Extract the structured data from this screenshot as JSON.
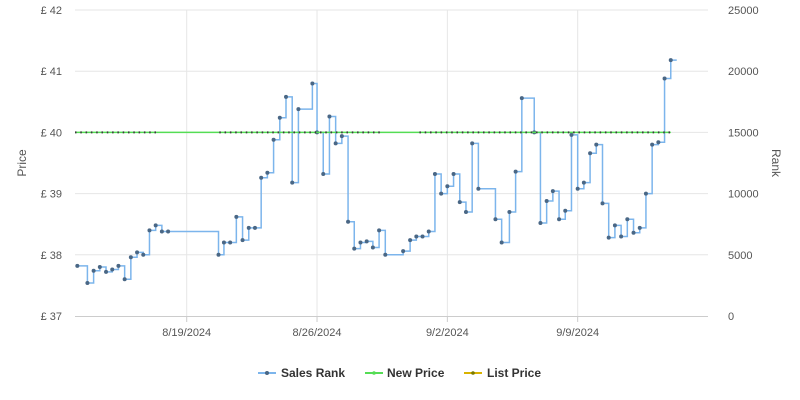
{
  "chart_data": {
    "type": "line",
    "title": "",
    "ylabel": "Price",
    "y2label": "Rank",
    "ylim": [
      37,
      42
    ],
    "y2lim": [
      0,
      25000
    ],
    "yticks": [
      {
        "value": 37,
        "label": "£ 37"
      },
      {
        "value": 38,
        "label": "£ 38"
      },
      {
        "value": 39,
        "label": "£ 39"
      },
      {
        "value": 40,
        "label": "£ 40"
      },
      {
        "value": 41,
        "label": "£ 41"
      },
      {
        "value": 42,
        "label": "£ 42"
      }
    ],
    "y2ticks": [
      {
        "value": 0,
        "label": "0"
      },
      {
        "value": 5000,
        "label": "5000"
      },
      {
        "value": 10000,
        "label": "10000"
      },
      {
        "value": 15000,
        "label": "15000"
      },
      {
        "value": 20000,
        "label": "20000"
      },
      {
        "value": 25000,
        "label": "25000"
      }
    ],
    "xlim": [
      "2024-08-13",
      "2024-09-16"
    ],
    "xticks": [
      {
        "date": "2024-08-19",
        "label": "8/19/2024"
      },
      {
        "date": "2024-08-26",
        "label": "8/26/2024"
      },
      {
        "date": "2024-09-02",
        "label": "9/2/2024"
      },
      {
        "date": "2024-09-09",
        "label": "9/9/2024"
      }
    ],
    "grid": true,
    "legend_position": "bottom-center",
    "series": [
      {
        "name": "Sales Rank",
        "axis": "right",
        "style": "step",
        "color": "#7cb5ec",
        "marker_color": "#4a6785",
        "points": [
          [
            "2024-08-13T03:00",
            4100
          ],
          [
            "2024-08-13T16:00",
            2700
          ],
          [
            "2024-08-14T00:00",
            3700
          ],
          [
            "2024-08-14T08:00",
            4000
          ],
          [
            "2024-08-14T16:00",
            3600
          ],
          [
            "2024-08-15T00:00",
            3800
          ],
          [
            "2024-08-15T08:00",
            4100
          ],
          [
            "2024-08-15T16:00",
            3000
          ],
          [
            "2024-08-16T00:00",
            4800
          ],
          [
            "2024-08-16T08:00",
            5200
          ],
          [
            "2024-08-16T16:00",
            5000
          ],
          [
            "2024-08-17T00:00",
            7000
          ],
          [
            "2024-08-17T08:00",
            7400
          ],
          [
            "2024-08-17T16:00",
            6900
          ],
          [
            "2024-08-18T00:00",
            6900
          ],
          [
            "2024-08-20T17:00",
            5000
          ],
          [
            "2024-08-21T00:00",
            6000
          ],
          [
            "2024-08-21T08:00",
            6000
          ],
          [
            "2024-08-21T16:00",
            8100
          ],
          [
            "2024-08-22T00:00",
            6200
          ],
          [
            "2024-08-22T08:00",
            7200
          ],
          [
            "2024-08-22T16:00",
            7200
          ],
          [
            "2024-08-23T00:00",
            11300
          ],
          [
            "2024-08-23T08:00",
            11700
          ],
          [
            "2024-08-23T16:00",
            14400
          ],
          [
            "2024-08-24T00:00",
            16200
          ],
          [
            "2024-08-24T08:00",
            17900
          ],
          [
            "2024-08-24T16:00",
            10900
          ],
          [
            "2024-08-25T00:00",
            16900
          ],
          [
            "2024-08-25T18:00",
            19000
          ],
          [
            "2024-08-26T00:00",
            15000
          ],
          [
            "2024-08-26T08:00",
            11600
          ],
          [
            "2024-08-26T16:00",
            16300
          ],
          [
            "2024-08-27T00:00",
            14100
          ],
          [
            "2024-08-27T08:00",
            14700
          ],
          [
            "2024-08-27T16:00",
            7700
          ],
          [
            "2024-08-28T00:00",
            5500
          ],
          [
            "2024-08-28T08:00",
            6000
          ],
          [
            "2024-08-28T16:00",
            6100
          ],
          [
            "2024-08-29T00:00",
            5600
          ],
          [
            "2024-08-29T08:00",
            7000
          ],
          [
            "2024-08-29T16:00",
            5000
          ],
          [
            "2024-08-30T15:00",
            5300
          ],
          [
            "2024-08-31T00:00",
            6200
          ],
          [
            "2024-08-31T08:00",
            6500
          ],
          [
            "2024-08-31T16:00",
            6500
          ],
          [
            "2024-09-01T00:00",
            6900
          ],
          [
            "2024-09-01T08:00",
            11600
          ],
          [
            "2024-09-01T16:00",
            10000
          ],
          [
            "2024-09-02T00:00",
            10600
          ],
          [
            "2024-09-02T08:00",
            11600
          ],
          [
            "2024-09-02T16:00",
            9300
          ],
          [
            "2024-09-03T00:00",
            8500
          ],
          [
            "2024-09-03T08:00",
            14100
          ],
          [
            "2024-09-03T16:00",
            10400
          ],
          [
            "2024-09-04T14:00",
            7900
          ],
          [
            "2024-09-04T22:00",
            6000
          ],
          [
            "2024-09-05T08:00",
            8500
          ],
          [
            "2024-09-05T16:00",
            11800
          ],
          [
            "2024-09-06T00:00",
            17800
          ],
          [
            "2024-09-06T16:00",
            15000
          ],
          [
            "2024-09-07T00:00",
            7600
          ],
          [
            "2024-09-07T08:00",
            9400
          ],
          [
            "2024-09-07T16:00",
            10200
          ],
          [
            "2024-09-08T00:00",
            7900
          ],
          [
            "2024-09-08T08:00",
            8600
          ],
          [
            "2024-09-08T16:00",
            14800
          ],
          [
            "2024-09-09T00:00",
            10400
          ],
          [
            "2024-09-09T08:00",
            10900
          ],
          [
            "2024-09-09T16:00",
            13300
          ],
          [
            "2024-09-10T00:00",
            14000
          ],
          [
            "2024-09-10T08:00",
            9200
          ],
          [
            "2024-09-10T16:00",
            6400
          ],
          [
            "2024-09-11T00:00",
            7400
          ],
          [
            "2024-09-11T08:00",
            6500
          ],
          [
            "2024-09-11T16:00",
            7900
          ],
          [
            "2024-09-12T00:00",
            6800
          ],
          [
            "2024-09-12T08:00",
            7200
          ],
          [
            "2024-09-12T16:00",
            10000
          ],
          [
            "2024-09-13T00:00",
            14000
          ],
          [
            "2024-09-13T08:00",
            14200
          ],
          [
            "2024-09-13T16:00",
            19400
          ],
          [
            "2024-09-14T00:00",
            20900
          ]
        ]
      },
      {
        "name": "New Price",
        "axis": "left",
        "style": "flat",
        "color": "#55dd55",
        "value": 40,
        "range": [
          "2024-08-13T00:00",
          "2024-09-14T00:00"
        ]
      },
      {
        "name": "List Price",
        "axis": "left",
        "style": "dotted",
        "color": "#3a3a3a",
        "legend_color": "#d9b300",
        "value": 40,
        "segments": [
          [
            "2024-08-13T00:00",
            "2024-08-17T12:00"
          ],
          [
            "2024-08-20T18:00",
            "2024-08-29T12:00"
          ],
          [
            "2024-08-31T12:00",
            "2024-09-14T00:00"
          ]
        ]
      }
    ]
  }
}
